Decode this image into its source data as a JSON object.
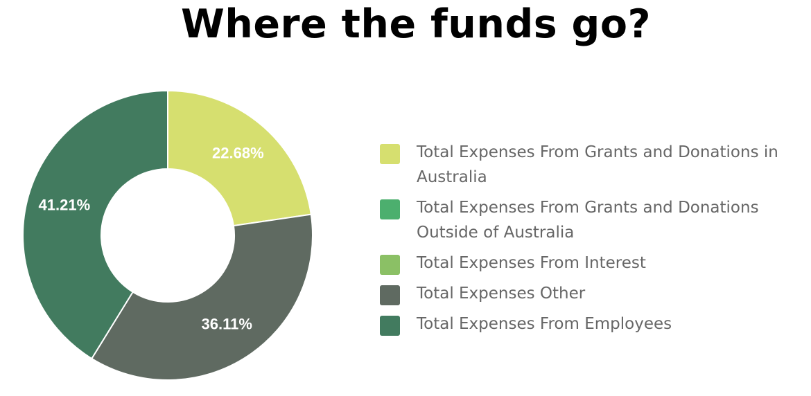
{
  "page": {
    "title": "Where the funds go?"
  },
  "chart_data": {
    "type": "pie",
    "style": "donut",
    "title": "Where the funds go?",
    "legend_position": "right",
    "slices": [
      {
        "name": "Total Expenses From Grants and Donations in Australia",
        "value": 22.68,
        "label": "22.68%",
        "color": "#d6df6f"
      },
      {
        "name": "Total Expenses From Grants and Donations Outside of Australia",
        "value": 0,
        "label": "",
        "color": "#4caf6e"
      },
      {
        "name": "Total Expenses From Interest",
        "value": 0,
        "label": "",
        "color": "#8bc065"
      },
      {
        "name": "Total Expenses Other",
        "value": 36.11,
        "label": "36.11%",
        "color": "#5f6a61"
      },
      {
        "name": "Total Expenses From Employees",
        "value": 41.21,
        "label": "41.21%",
        "color": "#427b5f"
      }
    ]
  }
}
